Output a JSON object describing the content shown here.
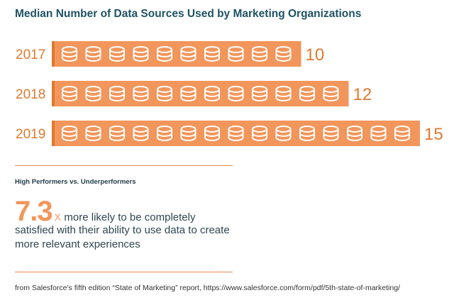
{
  "chart_data": {
    "type": "bar",
    "title": "Median Number of Data Sources Used by Marketing Organizations",
    "categories": [
      "2017",
      "2018",
      "2019"
    ],
    "values": [
      10,
      12,
      15
    ],
    "value_labels": [
      "10",
      "12",
      "15"
    ],
    "icon": "database-icon",
    "colors": {
      "bar": "#f2965b",
      "accent": "#e0792f",
      "label": "#e0792f",
      "icon": "#ffffff"
    }
  },
  "subhead": "High Performers vs. Underperformers",
  "stat": {
    "number": "7.3",
    "times": "X",
    "text_line1": "more likely to be completely",
    "text_line2": "satisfied with their ability to use data to create",
    "text_line3": "more relevant experiences"
  },
  "source": "from Salesforce's fifth edition “State of Marketing” report, https://www.salesforce.com/form/pdf/5th-state-of-marketing/"
}
